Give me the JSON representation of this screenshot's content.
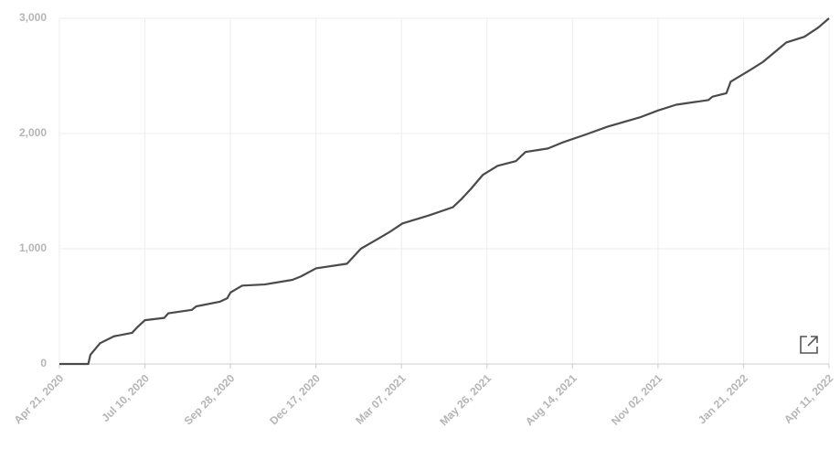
{
  "chart_data": {
    "type": "line",
    "x": [
      "2020-04-21",
      "2020-05-18",
      "2020-05-20",
      "2020-05-29",
      "2020-06-11",
      "2020-06-28",
      "2020-07-03",
      "2020-07-10",
      "2020-07-28",
      "2020-08-01",
      "2020-08-23",
      "2020-08-27",
      "2020-09-18",
      "2020-09-25",
      "2020-09-28",
      "2020-10-09",
      "2020-10-30",
      "2020-11-25",
      "2020-12-03",
      "2020-12-17",
      "2021-01-15",
      "2021-01-28",
      "2021-02-10",
      "2021-02-23",
      "2021-03-08",
      "2021-04-02",
      "2021-04-24",
      "2021-05-02",
      "2021-05-11",
      "2021-05-22",
      "2021-06-05",
      "2021-06-22",
      "2021-07-01",
      "2021-07-22",
      "2021-08-04",
      "2021-08-26",
      "2021-09-16",
      "2021-10-16",
      "2021-11-02",
      "2021-11-19",
      "2021-12-19",
      "2021-12-23",
      "2022-01-05",
      "2022-01-09",
      "2022-01-27",
      "2022-02-08",
      "2022-02-21",
      "2022-03-02",
      "2022-03-19",
      "2022-04-01",
      "2022-04-11"
    ],
    "series": [
      {
        "color": "#4a4a4a",
        "values": [
          0,
          0,
          80,
          180,
          240,
          270,
          320,
          380,
          400,
          440,
          470,
          500,
          540,
          570,
          620,
          680,
          690,
          730,
          760,
          830,
          870,
          1000,
          1070,
          1140,
          1220,
          1290,
          1360,
          1430,
          1520,
          1640,
          1720,
          1760,
          1840,
          1870,
          1920,
          1990,
          2060,
          2140,
          2200,
          2250,
          2290,
          2320,
          2350,
          2450,
          2550,
          2620,
          2720,
          2790,
          2840,
          2920,
          3000
        ]
      }
    ],
    "xlim": [
      "2020-04-21",
      "2022-04-11"
    ],
    "xticks": [
      {
        "value": "2020-04-21",
        "label": "Apr 21, 2020"
      },
      {
        "value": "2020-07-10",
        "label": "Jul 10, 2020"
      },
      {
        "value": "2020-09-28",
        "label": "Sep 28, 2020"
      },
      {
        "value": "2020-12-17",
        "label": "Dec 17, 2020"
      },
      {
        "value": "2021-03-07",
        "label": "Mar 07, 2021"
      },
      {
        "value": "2021-05-26",
        "label": "May 26, 2021"
      },
      {
        "value": "2021-08-14",
        "label": "Aug 14, 2021"
      },
      {
        "value": "2021-11-02",
        "label": "Nov 02, 2021"
      },
      {
        "value": "2022-01-21",
        "label": "Jan 21, 2022"
      },
      {
        "value": "2022-04-11",
        "label": "Apr 11, 2022"
      }
    ],
    "ylim": [
      0,
      3000
    ],
    "yticks": [
      0,
      {
        "value": 1000,
        "label": "1,000"
      },
      {
        "value": 2000,
        "label": "2,000"
      },
      {
        "value": 3000,
        "label": "3,000"
      }
    ],
    "grid": true
  }
}
